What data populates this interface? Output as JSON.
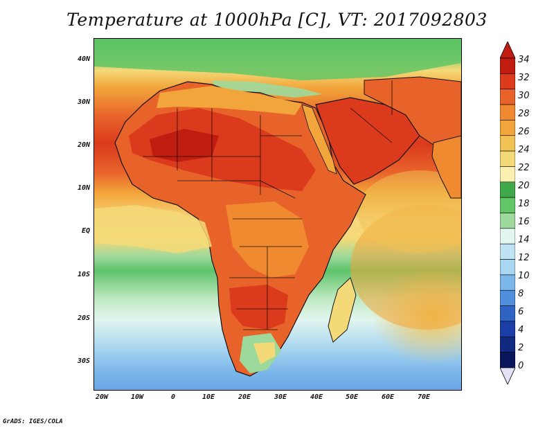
{
  "title": "Temperature at 1000hPa [C], VT: 2017092803",
  "credit": "GrADS: IGES/COLA",
  "axes": {
    "lat_labels": [
      "40N",
      "30N",
      "20N",
      "10N",
      "EQ",
      "10S",
      "20S",
      "30S"
    ],
    "lon_labels": [
      "20W",
      "10W",
      "0",
      "10E",
      "20E",
      "30E",
      "40E",
      "50E",
      "60E",
      "70E"
    ],
    "lat_values": [
      40,
      30,
      20,
      10,
      0,
      -10,
      -20,
      -30
    ],
    "lon_values": [
      -20,
      -10,
      0,
      10,
      20,
      30,
      40,
      50,
      60,
      70
    ],
    "lon_range": [
      -22,
      80
    ],
    "lat_range": [
      -36,
      45
    ]
  },
  "colorbar": {
    "labels": [
      "34",
      "32",
      "30",
      "28",
      "26",
      "24",
      "22",
      "20",
      "18",
      "16",
      "14",
      "12",
      "10",
      "8",
      "6",
      "4",
      "2",
      "0"
    ],
    "colors": [
      "#c01d10",
      "#db3a1c",
      "#e8632a",
      "#f08a30",
      "#f2a53a",
      "#f0c253",
      "#f4d978",
      "#fbf0b0",
      "#3fa84a",
      "#62c566",
      "#9ed99c",
      "#e1f6ef",
      "#bfe3f3",
      "#a9d6f0",
      "#7bb6ea",
      "#4f8fdd",
      "#2f63c4",
      "#1b3fa6",
      "#0f2a80",
      "#08175c"
    ],
    "arrow_top_color": "#c01d10",
    "arrow_bottom_color": "#e6e0f5"
  }
}
